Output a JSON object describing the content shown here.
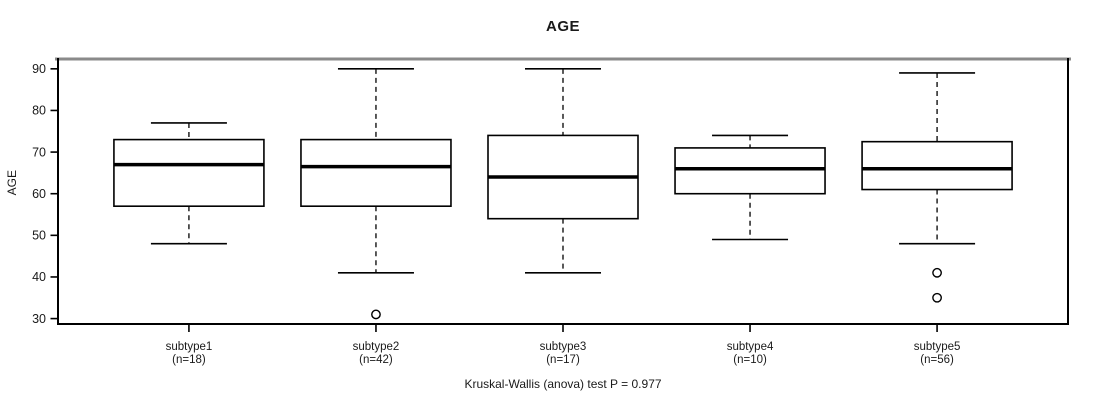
{
  "chart_data": {
    "type": "boxplot",
    "title": "AGE",
    "ylabel": "AGE",
    "xlabel": "",
    "annotation": "Kruskal-Wallis (anova) test P = 0.977",
    "ylim": [
      28.7,
      92.6
    ],
    "yticks": [
      30,
      40,
      50,
      60,
      70,
      80,
      90
    ],
    "grid": false,
    "legend": null,
    "categories": [
      "subtype1",
      "subtype2",
      "subtype3",
      "subtype4",
      "subtype5"
    ],
    "sample_size_labels": [
      "(n=18)",
      "(n=42)",
      "(n=17)",
      "(n=10)",
      "(n=56)"
    ],
    "series": [
      {
        "name": "subtype1",
        "n": 18,
        "whisker_low": 48,
        "q1": 57,
        "median": 67,
        "q3": 73,
        "whisker_high": 77,
        "outliers": []
      },
      {
        "name": "subtype2",
        "n": 42,
        "whisker_low": 41,
        "q1": 57,
        "median": 66.5,
        "q3": 73,
        "whisker_high": 90,
        "outliers": [
          31
        ]
      },
      {
        "name": "subtype3",
        "n": 17,
        "whisker_low": 41,
        "q1": 54,
        "median": 64,
        "q3": 74,
        "whisker_high": 90,
        "outliers": []
      },
      {
        "name": "subtype4",
        "n": 10,
        "whisker_low": 49,
        "q1": 60,
        "median": 66,
        "q3": 71,
        "whisker_high": 74,
        "outliers": []
      },
      {
        "name": "subtype5",
        "n": 56,
        "whisker_low": 48,
        "q1": 61,
        "median": 66,
        "q3": 72.5,
        "whisker_high": 89,
        "outliers": [
          41,
          35
        ]
      }
    ],
    "colors": {
      "line": "#000000",
      "background": "#ffffff",
      "frame_top": "#8a8a8a",
      "box_fill": "#ffffff"
    }
  }
}
